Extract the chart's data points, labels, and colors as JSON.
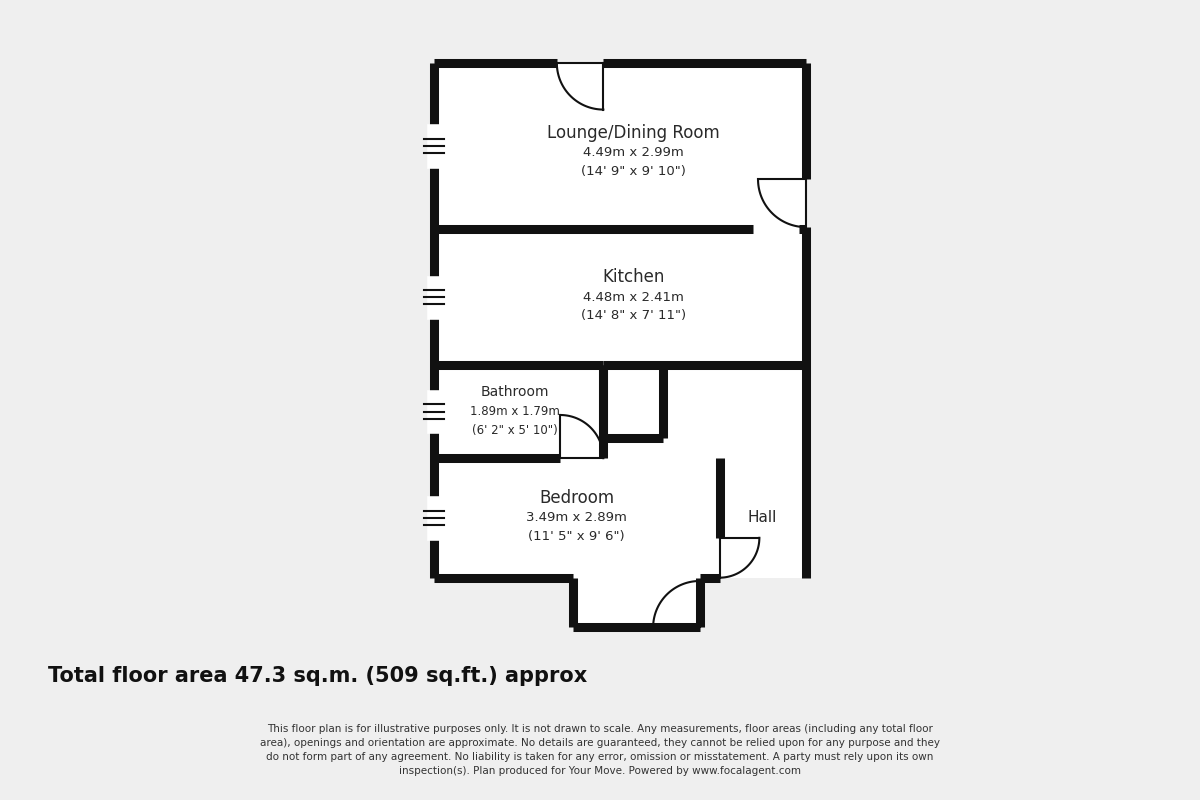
{
  "bg_color": "#efefef",
  "wall_color": "#111111",
  "room_fill": "#ffffff",
  "wall_lw": 6.5,
  "thin_lw": 1.5,
  "title_text": "Total floor area 47.3 sq.m. (509 sq.ft.) approx",
  "disc1": "This floor plan is for illustrative purposes only. It is not drawn to scale. Any measurements, floor areas (including any total floor",
  "disc2": "area), openings and orientation are approximate. No details are guaranteed, they cannot be relied upon for any purpose and they",
  "disc3": "do not form part of any agreement. No liability is taken for any error, omission or misstatement. A party must rely upon its own",
  "disc4": "inspection(s). Plan produced for Your Move. Powered by www.focalagent.com",
  "lounge_label": "Lounge/Dining Room",
  "lounge_dim1": "4.49m x 2.99m",
  "lounge_dim2": "(14' 9\" x 9' 10\")",
  "kitchen_label": "Kitchen",
  "kitchen_dim1": "4.48m x 2.41m",
  "kitchen_dim2": "(14' 8\" x 7' 11\")",
  "bath_label": "Bathroom",
  "bath_dim1": "1.89m x 1.79m",
  "bath_dim2": "(6' 2\" x 5' 10\")",
  "bed_label": "Bedroom",
  "bed_dim1": "3.49m x 2.89m",
  "bed_dim2": "(11' 5\" x 9' 6\")",
  "hall_label": "Hall",
  "XL": 2.5,
  "XR": 8.1,
  "YT": 9.05,
  "YLB": 6.55,
  "YKB": 4.5,
  "YBRT": 3.1,
  "YBB": 1.3,
  "XBR": 5.05,
  "XHL": 6.8,
  "XEL": 4.6,
  "XER": 6.5,
  "YEB": 0.55
}
